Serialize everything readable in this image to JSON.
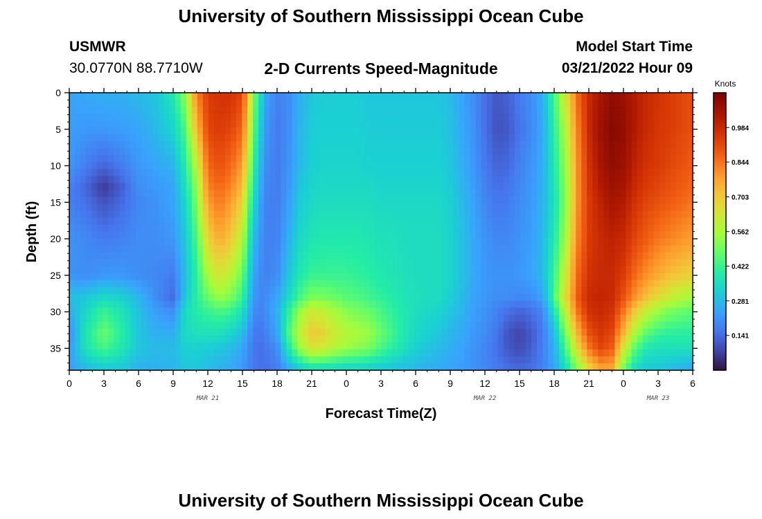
{
  "header": {
    "title": "University of Southern Mississippi Ocean Cube",
    "station": "USMWR",
    "coordinates": "30.0770N  88.7710W",
    "subtitle": "2-D Currents Speed-Magnitude",
    "model_start_label": "Model Start Time",
    "model_start_value": "03/21/2022 Hour 09"
  },
  "footer": {
    "title": "University of Southern Mississippi Ocean Cube"
  },
  "chart_data": {
    "type": "heatmap",
    "xlabel": "Forecast Time(Z)",
    "ylabel": "Depth (ft)",
    "x_tick_labels": [
      "0",
      "3",
      "6",
      "9",
      "12",
      "15",
      "18",
      "21",
      "0",
      "3",
      "6",
      "9",
      "12",
      "15",
      "18",
      "21",
      "0",
      "3",
      "6"
    ],
    "x_range_hours": [
      0,
      54
    ],
    "date_labels": [
      {
        "text": "MAR 21",
        "hour": 12
      },
      {
        "text": "MAR 22",
        "hour": 36
      },
      {
        "text": "MAR 23",
        "hour": 51
      }
    ],
    "y_tick_labels": [
      "0",
      "5",
      "10",
      "15",
      "20",
      "25",
      "30",
      "35"
    ],
    "y_range_ft": [
      0,
      38
    ],
    "y_inverted": true,
    "colorbar": {
      "unit": "Knots",
      "min": 0.0,
      "max": 1.125,
      "tick_labels": [
        "0.984",
        "0.844",
        "0.703",
        "0.562",
        "0.422",
        "0.281",
        "0.141"
      ],
      "tick_values": [
        0.984,
        0.844,
        0.703,
        0.562,
        0.422,
        0.281,
        0.141
      ],
      "colormap": "turbo"
    },
    "grid": false,
    "speed_field_knots": {
      "time_hours": [
        0,
        1.5,
        3,
        4.5,
        6,
        7.5,
        9,
        10,
        11,
        12,
        13,
        14,
        15,
        15.5,
        16,
        16.5,
        17,
        18,
        19,
        20,
        21,
        22,
        23,
        24,
        25,
        26,
        27,
        28,
        29,
        30,
        31,
        32,
        33,
        34,
        35,
        36,
        37,
        38,
        39,
        40,
        41,
        42,
        43,
        44,
        45,
        46,
        47,
        48,
        49,
        50,
        51,
        52,
        53,
        54
      ],
      "depth_ft": [
        0,
        5,
        10,
        13,
        15,
        20,
        25,
        28,
        30,
        33,
        35,
        38
      ],
      "values": [
        [
          0.24,
          0.23,
          0.22,
          0.18,
          0.18,
          0.21,
          0.21,
          0.29,
          0.25,
          0.2,
          0.22,
          0.23
        ],
        [
          0.25,
          0.22,
          0.17,
          0.13,
          0.15,
          0.19,
          0.2,
          0.3,
          0.34,
          0.38,
          0.37,
          0.27
        ],
        [
          0.26,
          0.22,
          0.13,
          0.06,
          0.1,
          0.17,
          0.22,
          0.34,
          0.42,
          0.48,
          0.44,
          0.3
        ],
        [
          0.26,
          0.23,
          0.17,
          0.12,
          0.14,
          0.18,
          0.22,
          0.32,
          0.37,
          0.4,
          0.38,
          0.3
        ],
        [
          0.28,
          0.24,
          0.22,
          0.2,
          0.19,
          0.2,
          0.2,
          0.27,
          0.29,
          0.3,
          0.3,
          0.26
        ],
        [
          0.3,
          0.28,
          0.24,
          0.22,
          0.21,
          0.2,
          0.19,
          0.2,
          0.23,
          0.26,
          0.28,
          0.26
        ],
        [
          0.38,
          0.33,
          0.27,
          0.24,
          0.24,
          0.22,
          0.17,
          0.14,
          0.2,
          0.26,
          0.28,
          0.27
        ],
        [
          0.52,
          0.44,
          0.38,
          0.35,
          0.33,
          0.3,
          0.28,
          0.3,
          0.34,
          0.34,
          0.32,
          0.3
        ],
        [
          0.82,
          0.72,
          0.58,
          0.52,
          0.5,
          0.44,
          0.4,
          0.4,
          0.39,
          0.36,
          0.32,
          0.3
        ],
        [
          0.94,
          0.92,
          0.86,
          0.82,
          0.78,
          0.68,
          0.56,
          0.48,
          0.42,
          0.36,
          0.31,
          0.28
        ],
        [
          0.96,
          0.94,
          0.9,
          0.86,
          0.84,
          0.76,
          0.64,
          0.54,
          0.44,
          0.36,
          0.3,
          0.26
        ],
        [
          0.96,
          0.92,
          0.86,
          0.82,
          0.78,
          0.7,
          0.58,
          0.5,
          0.42,
          0.33,
          0.28,
          0.25
        ],
        [
          0.92,
          0.86,
          0.78,
          0.72,
          0.68,
          0.58,
          0.48,
          0.42,
          0.36,
          0.28,
          0.24,
          0.22
        ],
        [
          0.72,
          0.66,
          0.58,
          0.52,
          0.48,
          0.4,
          0.34,
          0.3,
          0.26,
          0.22,
          0.2,
          0.19
        ],
        [
          0.5,
          0.46,
          0.4,
          0.36,
          0.34,
          0.28,
          0.24,
          0.22,
          0.2,
          0.17,
          0.16,
          0.16
        ],
        [
          0.36,
          0.32,
          0.28,
          0.26,
          0.24,
          0.22,
          0.2,
          0.19,
          0.18,
          0.16,
          0.15,
          0.15
        ],
        [
          0.24,
          0.22,
          0.2,
          0.19,
          0.18,
          0.18,
          0.18,
          0.2,
          0.2,
          0.18,
          0.16,
          0.15
        ],
        [
          0.18,
          0.17,
          0.17,
          0.17,
          0.17,
          0.18,
          0.2,
          0.24,
          0.26,
          0.24,
          0.2,
          0.17
        ],
        [
          0.2,
          0.2,
          0.21,
          0.22,
          0.23,
          0.26,
          0.3,
          0.34,
          0.4,
          0.44,
          0.38,
          0.24
        ],
        [
          0.26,
          0.27,
          0.28,
          0.3,
          0.31,
          0.34,
          0.38,
          0.44,
          0.54,
          0.6,
          0.54,
          0.3
        ],
        [
          0.3,
          0.31,
          0.32,
          0.33,
          0.34,
          0.37,
          0.42,
          0.5,
          0.62,
          0.7,
          0.64,
          0.34
        ],
        [
          0.31,
          0.32,
          0.33,
          0.34,
          0.35,
          0.38,
          0.42,
          0.5,
          0.6,
          0.68,
          0.62,
          0.33
        ],
        [
          0.31,
          0.32,
          0.33,
          0.34,
          0.35,
          0.38,
          0.42,
          0.48,
          0.56,
          0.62,
          0.58,
          0.33
        ],
        [
          0.31,
          0.32,
          0.33,
          0.34,
          0.35,
          0.38,
          0.42,
          0.46,
          0.52,
          0.58,
          0.54,
          0.32
        ],
        [
          0.31,
          0.32,
          0.33,
          0.34,
          0.35,
          0.38,
          0.41,
          0.45,
          0.5,
          0.56,
          0.52,
          0.32
        ],
        [
          0.3,
          0.31,
          0.32,
          0.34,
          0.35,
          0.37,
          0.4,
          0.43,
          0.48,
          0.54,
          0.5,
          0.31
        ],
        [
          0.3,
          0.31,
          0.32,
          0.33,
          0.34,
          0.36,
          0.38,
          0.41,
          0.44,
          0.48,
          0.44,
          0.3
        ],
        [
          0.3,
          0.31,
          0.32,
          0.33,
          0.34,
          0.36,
          0.37,
          0.39,
          0.41,
          0.43,
          0.4,
          0.29
        ],
        [
          0.3,
          0.31,
          0.32,
          0.33,
          0.34,
          0.35,
          0.36,
          0.37,
          0.38,
          0.38,
          0.36,
          0.28
        ],
        [
          0.3,
          0.31,
          0.32,
          0.33,
          0.34,
          0.35,
          0.35,
          0.36,
          0.35,
          0.34,
          0.32,
          0.27
        ],
        [
          0.3,
          0.31,
          0.32,
          0.33,
          0.34,
          0.35,
          0.35,
          0.35,
          0.34,
          0.32,
          0.3,
          0.26
        ],
        [
          0.3,
          0.31,
          0.32,
          0.33,
          0.34,
          0.35,
          0.35,
          0.35,
          0.33,
          0.3,
          0.28,
          0.25
        ],
        [
          0.28,
          0.29,
          0.3,
          0.31,
          0.32,
          0.33,
          0.33,
          0.32,
          0.3,
          0.27,
          0.26,
          0.24
        ],
        [
          0.24,
          0.25,
          0.26,
          0.27,
          0.28,
          0.29,
          0.29,
          0.28,
          0.27,
          0.25,
          0.24,
          0.23
        ],
        [
          0.2,
          0.21,
          0.22,
          0.23,
          0.24,
          0.25,
          0.25,
          0.24,
          0.23,
          0.22,
          0.21,
          0.21
        ],
        [
          0.15,
          0.15,
          0.17,
          0.18,
          0.19,
          0.21,
          0.22,
          0.22,
          0.21,
          0.2,
          0.19,
          0.19
        ],
        [
          0.11,
          0.1,
          0.13,
          0.15,
          0.16,
          0.19,
          0.21,
          0.2,
          0.18,
          0.16,
          0.15,
          0.17
        ],
        [
          0.13,
          0.11,
          0.14,
          0.16,
          0.17,
          0.19,
          0.21,
          0.2,
          0.15,
          0.1,
          0.11,
          0.15
        ],
        [
          0.17,
          0.16,
          0.18,
          0.19,
          0.2,
          0.21,
          0.22,
          0.19,
          0.13,
          0.08,
          0.09,
          0.14
        ],
        [
          0.2,
          0.19,
          0.21,
          0.22,
          0.22,
          0.23,
          0.24,
          0.2,
          0.15,
          0.11,
          0.12,
          0.15
        ],
        [
          0.26,
          0.25,
          0.26,
          0.26,
          0.27,
          0.28,
          0.28,
          0.24,
          0.19,
          0.17,
          0.18,
          0.18
        ],
        [
          0.44,
          0.4,
          0.38,
          0.37,
          0.36,
          0.38,
          0.42,
          0.44,
          0.36,
          0.28,
          0.26,
          0.24
        ],
        [
          0.64,
          0.58,
          0.54,
          0.52,
          0.52,
          0.56,
          0.62,
          0.66,
          0.6,
          0.5,
          0.44,
          0.34
        ],
        [
          0.86,
          0.82,
          0.8,
          0.8,
          0.8,
          0.82,
          0.86,
          0.88,
          0.84,
          0.74,
          0.66,
          0.5
        ],
        [
          0.98,
          0.98,
          0.96,
          0.95,
          0.94,
          0.94,
          0.96,
          0.98,
          0.96,
          0.9,
          0.84,
          0.66
        ],
        [
          1.04,
          1.06,
          1.04,
          1.02,
          1.0,
          0.98,
          0.98,
          0.99,
          0.98,
          0.95,
          0.92,
          0.76
        ],
        [
          1.08,
          1.1,
          1.08,
          1.06,
          1.04,
          1.0,
          0.98,
          0.98,
          0.96,
          0.92,
          0.88,
          0.76
        ],
        [
          1.06,
          1.08,
          1.06,
          1.04,
          1.02,
          0.98,
          0.94,
          0.9,
          0.84,
          0.74,
          0.64,
          0.48
        ],
        [
          1.02,
          1.02,
          1.0,
          0.98,
          0.96,
          0.92,
          0.86,
          0.8,
          0.7,
          0.56,
          0.46,
          0.34
        ],
        [
          0.98,
          0.98,
          0.96,
          0.94,
          0.92,
          0.88,
          0.8,
          0.72,
          0.6,
          0.46,
          0.38,
          0.3
        ],
        [
          0.96,
          0.95,
          0.94,
          0.92,
          0.9,
          0.84,
          0.76,
          0.66,
          0.54,
          0.42,
          0.36,
          0.3
        ],
        [
          0.94,
          0.94,
          0.92,
          0.9,
          0.88,
          0.82,
          0.72,
          0.62,
          0.5,
          0.4,
          0.36,
          0.28
        ],
        [
          0.92,
          0.92,
          0.9,
          0.88,
          0.86,
          0.8,
          0.7,
          0.58,
          0.48,
          0.4,
          0.36,
          0.26
        ],
        [
          0.9,
          0.9,
          0.88,
          0.86,
          0.84,
          0.78,
          0.68,
          0.56,
          0.46,
          0.4,
          0.36,
          0.24
        ]
      ]
    }
  }
}
